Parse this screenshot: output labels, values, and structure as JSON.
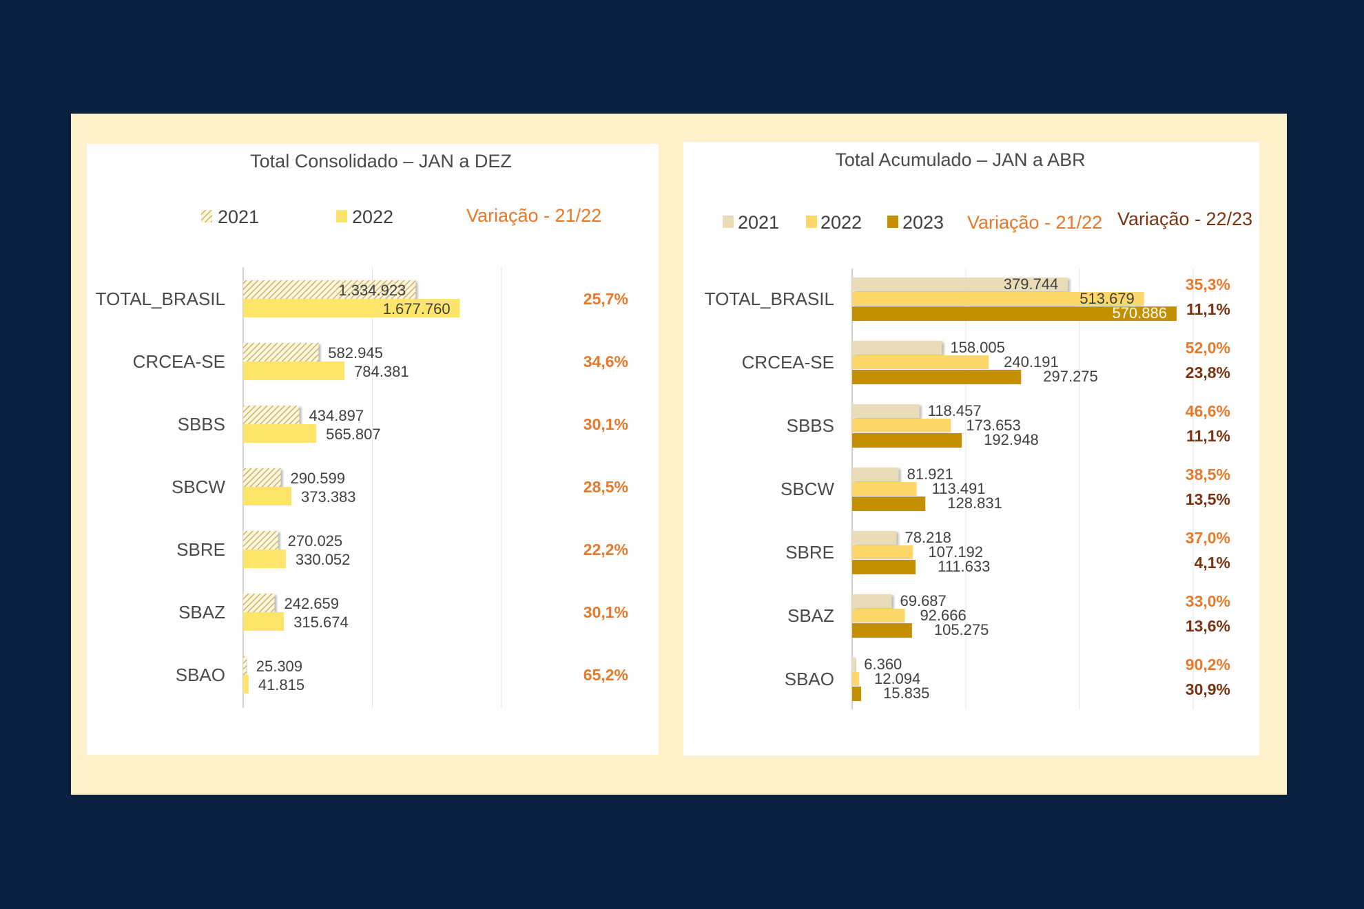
{
  "colors": {
    "background": "#0b1f3e",
    "frame": "#fff1cc",
    "card": "#ffffff",
    "y2021_left_hatch": "#c9b36a",
    "y2022": "#fde46a",
    "y2021": "#e9dcb8",
    "y2022_right": "#fdd769",
    "y2023": "#c49000",
    "var_21_22": "#e8782a",
    "var_22_23": "#7a3210",
    "text": "#404040",
    "grid": "#e6e6e6"
  },
  "chart_data": [
    {
      "type": "bar",
      "orientation": "horizontal",
      "title": "Total Consolidado – JAN a DEZ",
      "legend": [
        {
          "label": "2021",
          "style": "hatched"
        },
        {
          "label": "2022",
          "style": "solid"
        },
        {
          "label": "Variação - 21/22",
          "style": "text"
        }
      ],
      "legend_position": "top",
      "categories": [
        "TOTAL_BRASIL",
        "CRCEA-SE",
        "SBBS",
        "SBCW",
        "SBRE",
        "SBAZ",
        "SBAO"
      ],
      "series": [
        {
          "name": "2021",
          "values": [
            1334923,
            582945,
            434897,
            290599,
            270025,
            242659,
            25309
          ],
          "labels": [
            "1.334.923",
            "582.945",
            "434.897",
            "290.599",
            "270.025",
            "242.659",
            "25.309"
          ]
        },
        {
          "name": "2022",
          "values": [
            1677760,
            784381,
            565807,
            373383,
            330052,
            315674,
            41815
          ],
          "labels": [
            "1.677.760",
            "784.381",
            "565.807",
            "373.383",
            "330.052",
            "315.674",
            "41.815"
          ]
        }
      ],
      "variation": [
        {
          "name": "Variação - 21/22",
          "values": [
            "25,7%",
            "34,6%",
            "30,1%",
            "28,5%",
            "22,2%",
            "30,1%",
            "65,2%"
          ]
        }
      ],
      "xlim": [
        0,
        2000000
      ],
      "grid_step": 1000000,
      "grid": true,
      "xlabel": "",
      "ylabel": ""
    },
    {
      "type": "bar",
      "orientation": "horizontal",
      "title": "Total Acumulado – JAN a ABR",
      "legend": [
        {
          "label": "2021",
          "style": "solid"
        },
        {
          "label": "2022",
          "style": "solid"
        },
        {
          "label": "2023",
          "style": "solid"
        },
        {
          "label": "Variação - 21/22",
          "style": "text"
        },
        {
          "label": "Variação - 22/23",
          "style": "text"
        }
      ],
      "legend_position": "top",
      "categories": [
        "TOTAL_BRASIL",
        "CRCEA-SE",
        "SBBS",
        "SBCW",
        "SBRE",
        "SBAZ",
        "SBAO"
      ],
      "series": [
        {
          "name": "2021",
          "values": [
            379744,
            158005,
            118457,
            81921,
            78218,
            69687,
            6360
          ],
          "labels": [
            "379.744",
            "158.005",
            "118.457",
            "81.921",
            "78.218",
            "69.687",
            "6.360"
          ]
        },
        {
          "name": "2022",
          "values": [
            513679,
            240191,
            173653,
            113491,
            107192,
            92666,
            12094
          ],
          "labels": [
            "513.679",
            "240.191",
            "173.653",
            "113.491",
            "107.192",
            "92.666",
            "12.094"
          ]
        },
        {
          "name": "2023",
          "values": [
            570886,
            297275,
            192948,
            128831,
            111633,
            105275,
            15835
          ],
          "labels": [
            "570.886",
            "297.275",
            "192.948",
            "128.831",
            "111.633",
            "105.275",
            "15.835"
          ]
        }
      ],
      "variation": [
        {
          "name": "Variação - 21/22",
          "values": [
            "35,3%",
            "52,0%",
            "46,6%",
            "38,5%",
            "37,0%",
            "33,0%",
            "90,2%"
          ]
        },
        {
          "name": "Variação - 22/23",
          "values": [
            "11,1%",
            "23,8%",
            "11,1%",
            "13,5%",
            "4,1%",
            "13,6%",
            "30,9%"
          ]
        }
      ],
      "xlim": [
        0,
        600000
      ],
      "grid_step": 200000,
      "grid": true,
      "xlabel": "",
      "ylabel": ""
    }
  ]
}
